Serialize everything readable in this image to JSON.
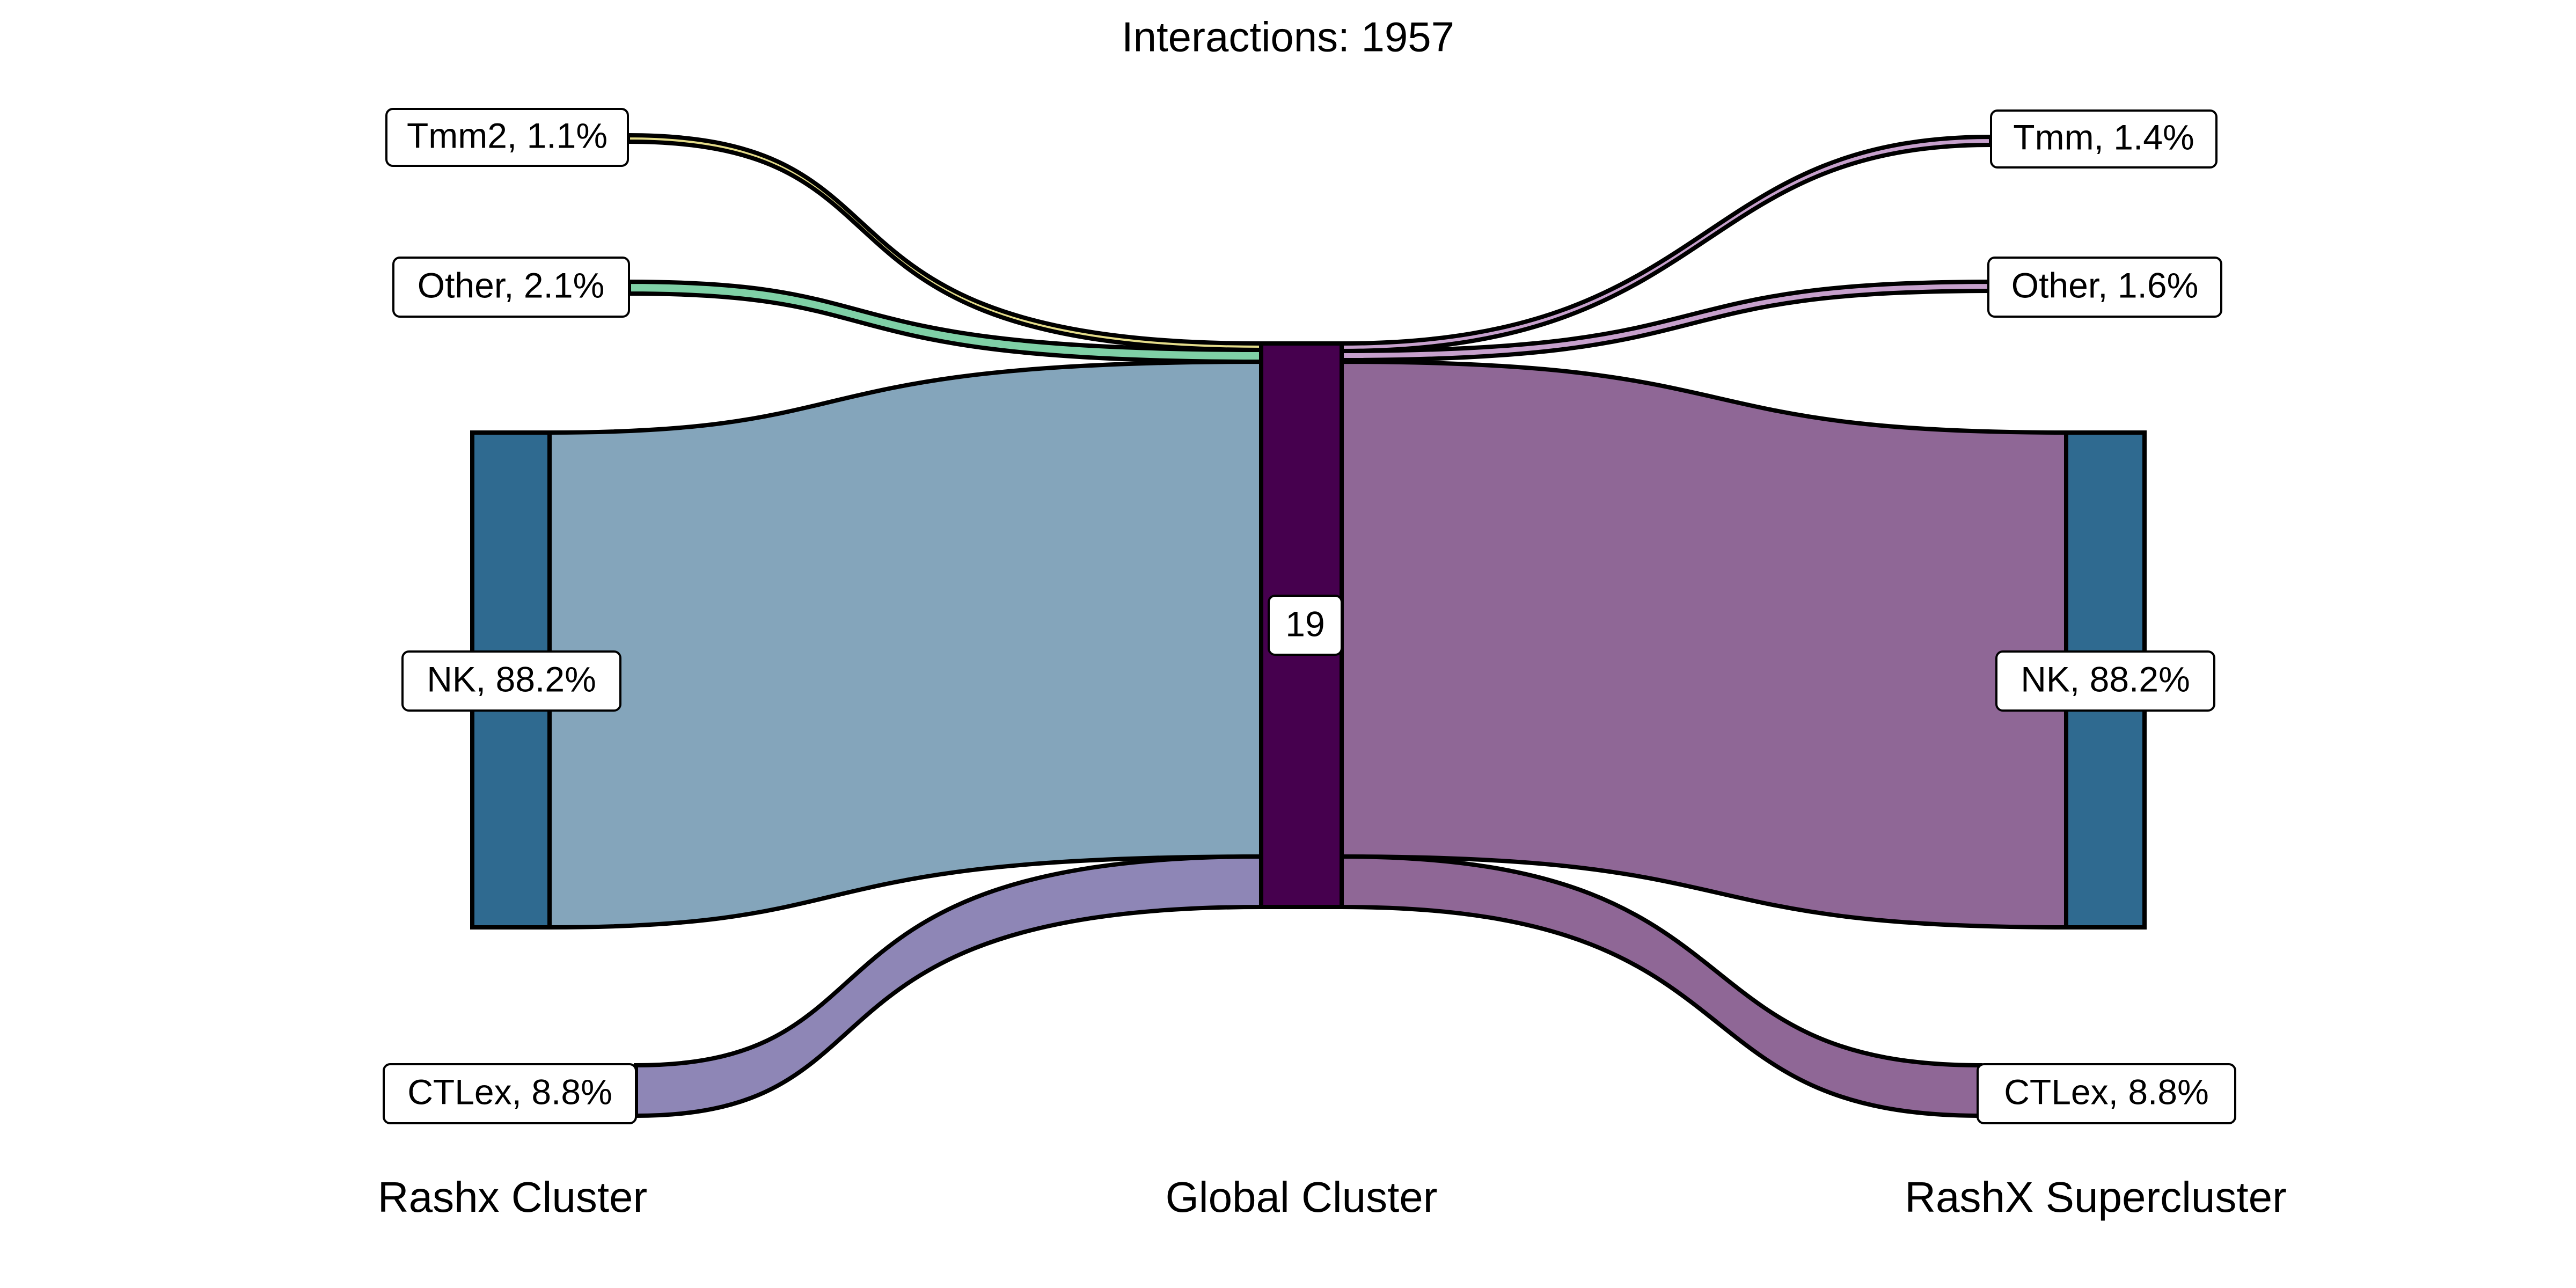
{
  "title": "Interactions: 1957",
  "axis_labels": {
    "left": "Rashx Cluster",
    "middle": "Global Cluster",
    "right": "RashX Supercluster"
  },
  "left_nodes": {
    "tmm2": "Tmm2, 1.1%",
    "other": "Other, 2.1%",
    "nk": "NK, 88.2%",
    "ctlex": "CTLex, 8.8%"
  },
  "middle_node": {
    "label": "19"
  },
  "right_nodes": {
    "tmm": "Tmm, 1.4%",
    "other": "Other, 1.6%",
    "nk": "NK, 88.2%",
    "ctlex": "CTLex, 8.8%"
  },
  "colors": {
    "node_side": "#2f6a90",
    "node_middle": "#46004e",
    "flow_left_nk": "#84a5bb",
    "flow_left_ctlex": "#8e86b6",
    "flow_left_other": "#7fd0a6",
    "flow_left_tmm2": "#e4dc8a",
    "flow_right_nk": "#8f6796",
    "flow_right_ctlex": "#8f6796",
    "flow_right_other": "#c6a0cc",
    "flow_right_tmm": "#c6a0cc"
  }
}
